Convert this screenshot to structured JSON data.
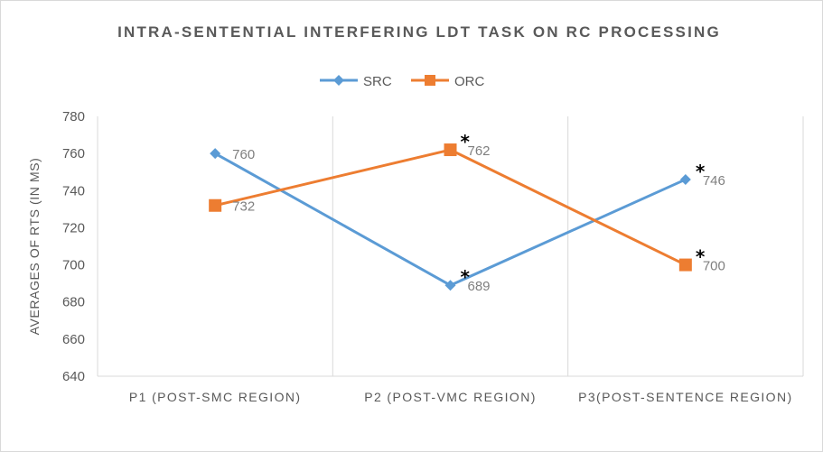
{
  "chart_data": {
    "type": "line",
    "title": "INTRA-SENTENTIAL INTERFERING LDT TASK ON RC PROCESSING",
    "ylabel": "AVERAGES OF RTS (IN MS)",
    "xlabel": "",
    "categories": [
      "P1 (POST-SMC REGION)",
      "P2 (POST-VMC REGION)",
      "P3(POST-SENTENCE REGION)"
    ],
    "ylim": [
      640,
      780
    ],
    "yticks": [
      640,
      660,
      680,
      700,
      720,
      740,
      760,
      780
    ],
    "grid": "vertical category separators",
    "legend_position": "top-center",
    "series": [
      {
        "name": "SRC",
        "values": [
          760,
          689,
          746
        ],
        "marker": "diamond",
        "color": "#5b9bd5",
        "significant": [
          false,
          true,
          true
        ]
      },
      {
        "name": "ORC",
        "values": [
          732,
          762,
          700
        ],
        "marker": "square",
        "color": "#ed7d31",
        "significant": [
          false,
          true,
          true
        ]
      }
    ],
    "significance_mark": "*"
  }
}
